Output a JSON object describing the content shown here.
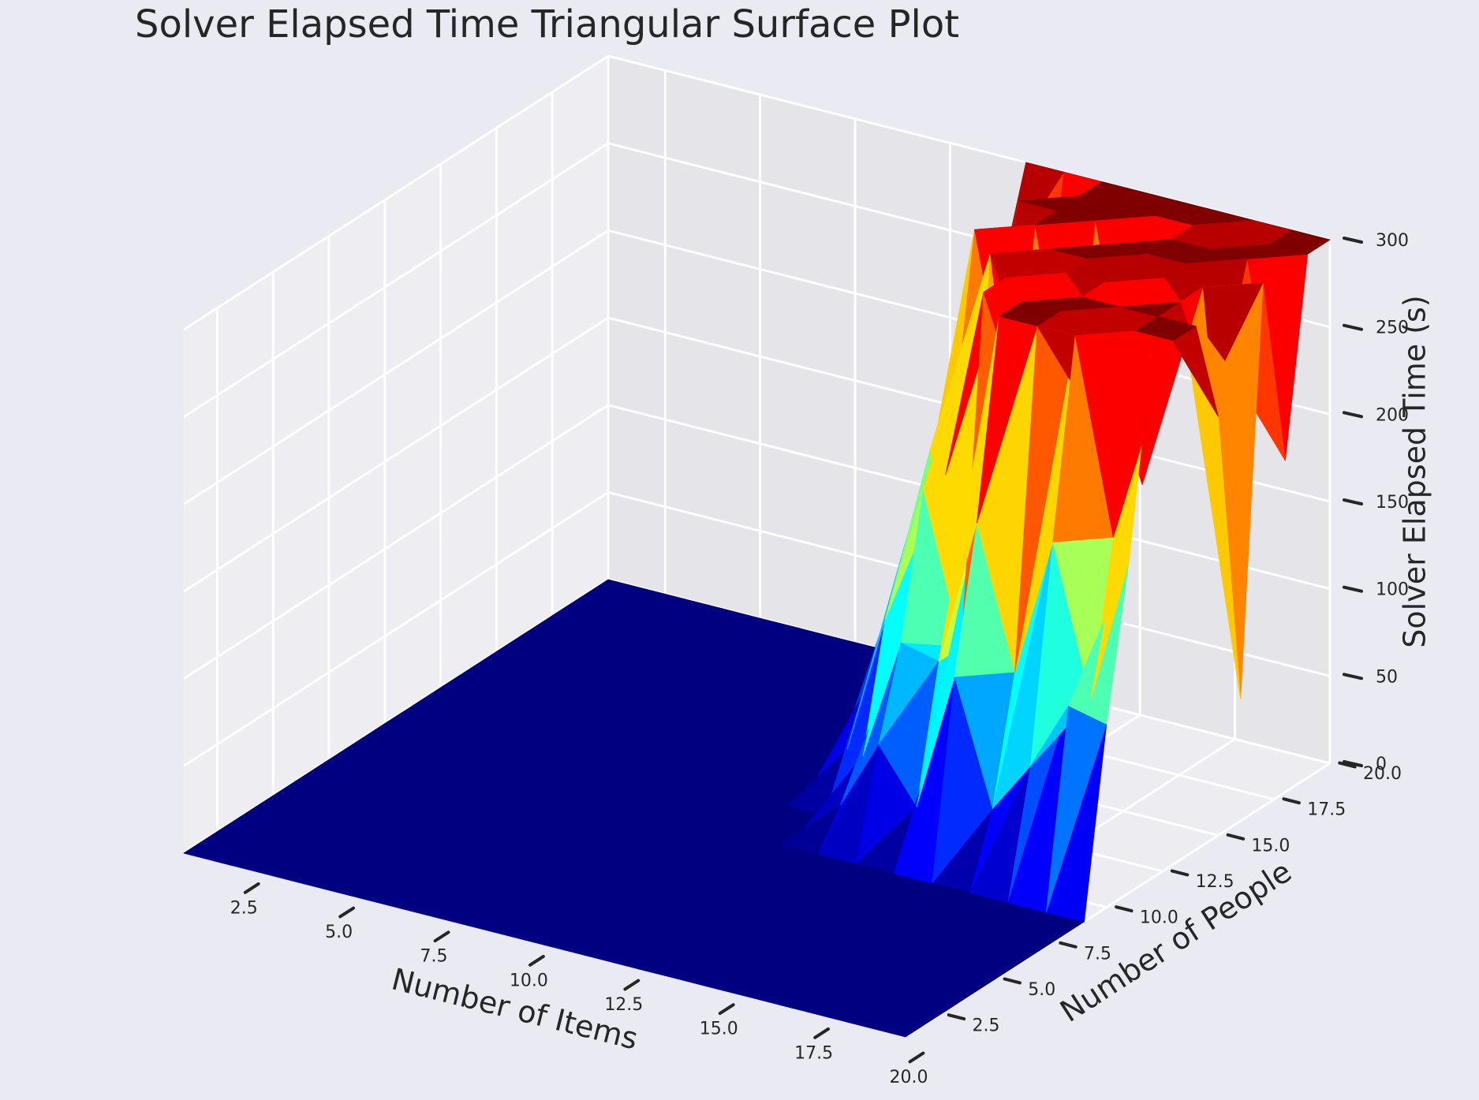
{
  "chart_data": {
    "type": "trisurf",
    "title": "Solver Elapsed Time Triangular Surface Plot",
    "x_label": "Number of Items",
    "y_label": "Number of People",
    "z_label": "Solver Elapsed Time (s)",
    "colormap": "jet",
    "grid": true,
    "x": [
      1,
      2,
      3,
      4,
      5,
      6,
      7,
      8,
      9,
      10,
      11,
      12,
      13,
      14,
      15,
      16,
      17,
      18,
      19,
      20
    ],
    "y": [
      1,
      2,
      3,
      4,
      5,
      6,
      7,
      8,
      9,
      10,
      11,
      12,
      13,
      14,
      15,
      16,
      17,
      18,
      19,
      20
    ],
    "z": [
      [
        0,
        0,
        0,
        0,
        0,
        0,
        0,
        0,
        0,
        0,
        0,
        0,
        0,
        0,
        0,
        0,
        0,
        0,
        0,
        0
      ],
      [
        0,
        0,
        0,
        0,
        0,
        0,
        0,
        0,
        0,
        0,
        0,
        0,
        0,
        0,
        0,
        0,
        0,
        0,
        0,
        0
      ],
      [
        0,
        0,
        0,
        0,
        0,
        0,
        0,
        0,
        0,
        0,
        0,
        0,
        0,
        0,
        0,
        0,
        0,
        0,
        0,
        0
      ],
      [
        0,
        0,
        0,
        0,
        0,
        0,
        0,
        0,
        0,
        0,
        0,
        0,
        0,
        0,
        0,
        0,
        0,
        0,
        0,
        0
      ],
      [
        0,
        0,
        0,
        0,
        0,
        0,
        0,
        0,
        0,
        0,
        0,
        0,
        0,
        0,
        0,
        0,
        0,
        0,
        0,
        0
      ],
      [
        0,
        0,
        0,
        0,
        0,
        0,
        0,
        0,
        0,
        0,
        0,
        0,
        0,
        0,
        0,
        0,
        0,
        0,
        0,
        0
      ],
      [
        0,
        0,
        0,
        0,
        0,
        0,
        0,
        0,
        0,
        0,
        0,
        0,
        0,
        0,
        0,
        0,
        0,
        0,
        0,
        0
      ],
      [
        0,
        0,
        0,
        0,
        0,
        0,
        0,
        0,
        0,
        0,
        0,
        0,
        0,
        0,
        0,
        0,
        0,
        0,
        0,
        0
      ],
      [
        0,
        0,
        0,
        0,
        0,
        0,
        0,
        0,
        0,
        0,
        0,
        0,
        0,
        0,
        0,
        0,
        0,
        0,
        0,
        0
      ],
      [
        0,
        0,
        0,
        0,
        0,
        0,
        0,
        0,
        0,
        0,
        0,
        0,
        20,
        60,
        30,
        110,
        40,
        70,
        110,
        105
      ],
      [
        0,
        0,
        0,
        0,
        0,
        0,
        0,
        0,
        0,
        0,
        0,
        0,
        40,
        110,
        105,
        190,
        110,
        190,
        105,
        190
      ],
      [
        0,
        0,
        0,
        0,
        0,
        0,
        0,
        0,
        0,
        0,
        0,
        30,
        110,
        190,
        105,
        300,
        300,
        300,
        190,
        300
      ],
      [
        0,
        0,
        0,
        0,
        0,
        0,
        0,
        0,
        0,
        0,
        0,
        60,
        150,
        190,
        300,
        300,
        300,
        240,
        300,
        300
      ],
      [
        0,
        0,
        0,
        0,
        0,
        0,
        0,
        0,
        0,
        0,
        0,
        100,
        190,
        105,
        300,
        190,
        300,
        300,
        300,
        300
      ],
      [
        0,
        0,
        0,
        0,
        0,
        0,
        0,
        0,
        0,
        0,
        0,
        120,
        190,
        300,
        240,
        300,
        300,
        190,
        300,
        240
      ],
      [
        0,
        0,
        0,
        0,
        0,
        0,
        0,
        0,
        0,
        0,
        0,
        150,
        300,
        190,
        300,
        300,
        250,
        300,
        300,
        70
      ],
      [
        0,
        0,
        0,
        0,
        0,
        0,
        0,
        0,
        0,
        0,
        0,
        150,
        250,
        300,
        190,
        300,
        300,
        300,
        250,
        300
      ],
      [
        0,
        0,
        0,
        0,
        0,
        0,
        0,
        0,
        0,
        0,
        0,
        190,
        300,
        300,
        300,
        190,
        300,
        300,
        300,
        190
      ],
      [
        0,
        0,
        0,
        0,
        0,
        0,
        0,
        0,
        0,
        0,
        0,
        250,
        190,
        300,
        300,
        300,
        300,
        250,
        300,
        300
      ],
      [
        0,
        0,
        0,
        0,
        0,
        0,
        0,
        0,
        0,
        0,
        0,
        300,
        300,
        300,
        300,
        300,
        300,
        300,
        300,
        300
      ]
    ],
    "xlim": [
      1,
      20
    ],
    "ylim": [
      1,
      20
    ],
    "zlim": [
      0,
      300
    ],
    "xticks": [
      2.5,
      {
        "value": 5,
        "label": "5.0"
      },
      7.5,
      {
        "value": 10,
        "label": "10.0"
      },
      12.5,
      {
        "value": 15,
        "label": "15.0"
      },
      17.5,
      {
        "value": 20,
        "label": "20.0"
      }
    ],
    "yticks": [
      2.5,
      {
        "value": 5,
        "label": "5.0"
      },
      7.5,
      {
        "value": 10,
        "label": "10.0"
      },
      12.5,
      {
        "value": 15,
        "label": "15.0"
      },
      17.5,
      {
        "value": 20,
        "label": "20.0"
      }
    ],
    "zticks": [
      0,
      50,
      100,
      150,
      200,
      250,
      300
    ]
  }
}
